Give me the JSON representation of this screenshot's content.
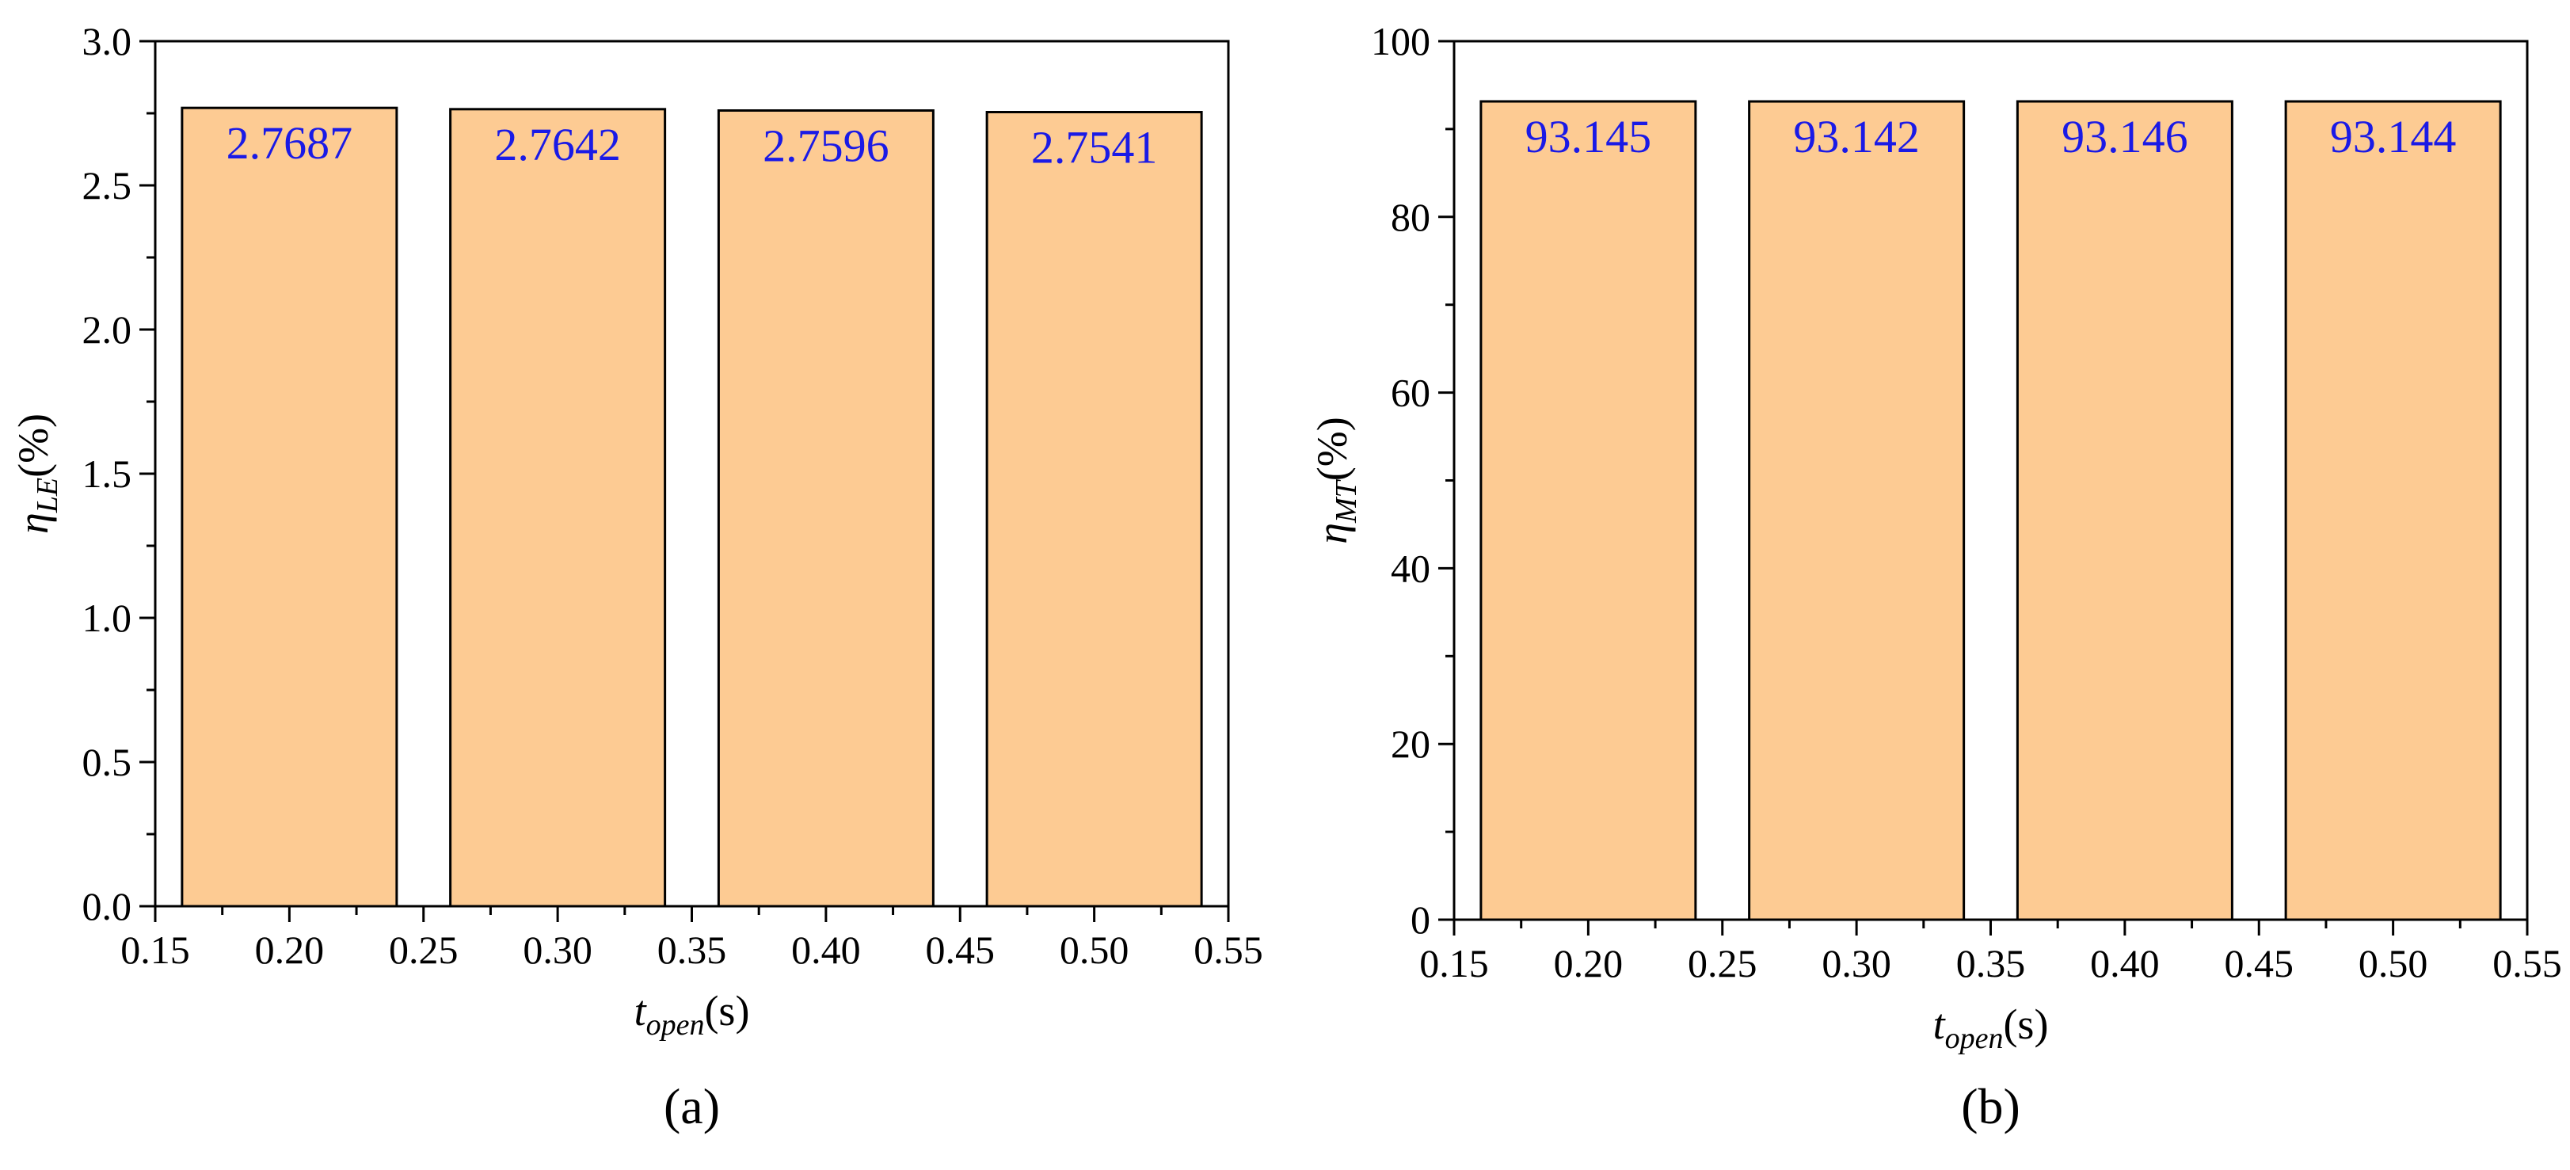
{
  "colors": {
    "bar_fill": "#FDCB93",
    "bar_stroke": "#000000",
    "value_label": "#1A1AE6",
    "axis": "#000000"
  },
  "chart_data": [
    {
      "panel_label": "(a)",
      "type": "bar",
      "x": [
        0.2,
        0.3,
        0.4,
        0.5
      ],
      "values": [
        2.7687,
        2.7642,
        2.7596,
        2.7541
      ],
      "data_labels": [
        "2.7687",
        "2.7642",
        "2.7596",
        "2.7541"
      ],
      "bar_width": 0.08,
      "xlim": [
        0.15,
        0.55
      ],
      "ylim": [
        0,
        3.0
      ],
      "x_ticks": [
        "0.15",
        "0.20",
        "0.25",
        "0.30",
        "0.35",
        "0.40",
        "0.45",
        "0.50",
        "0.55"
      ],
      "y_ticks": [
        "0.0",
        "0.5",
        "1.0",
        "1.5",
        "2.0",
        "2.5",
        "3.0"
      ],
      "xlabel": {
        "symbol": "t",
        "subscript": "open",
        "unit": "(s)"
      },
      "ylabel": {
        "symbol": "η",
        "subscript": "LE",
        "unit": "(%)"
      },
      "grid": false
    },
    {
      "panel_label": "(b)",
      "type": "bar",
      "x": [
        0.2,
        0.3,
        0.4,
        0.5
      ],
      "values": [
        93.145,
        93.142,
        93.146,
        93.144
      ],
      "data_labels": [
        "93.145",
        "93.142",
        "93.146",
        "93.144"
      ],
      "bar_width": 0.08,
      "xlim": [
        0.15,
        0.55
      ],
      "ylim": [
        0,
        100
      ],
      "x_ticks": [
        "0.15",
        "0.20",
        "0.25",
        "0.30",
        "0.35",
        "0.40",
        "0.45",
        "0.50",
        "0.55"
      ],
      "y_ticks": [
        "0",
        "20",
        "40",
        "60",
        "80",
        "100"
      ],
      "xlabel": {
        "symbol": "t",
        "subscript": "open",
        "unit": "(s)"
      },
      "ylabel": {
        "symbol": "η",
        "subscript": "MT",
        "unit": "(%)"
      },
      "grid": false
    }
  ]
}
